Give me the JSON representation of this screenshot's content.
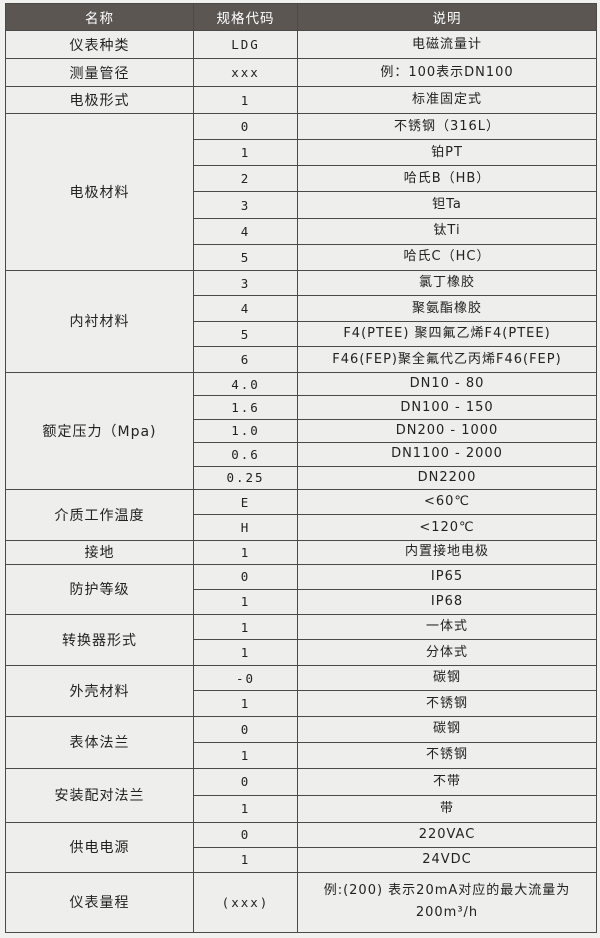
{
  "header": {
    "name": "名称",
    "code": "规格代码",
    "desc": "说明"
  },
  "groups": [
    {
      "name": "仪表种类",
      "rows": [
        {
          "code": "LDG",
          "desc": "电磁流量计"
        }
      ]
    },
    {
      "name": "测量管径",
      "rows": [
        {
          "code": "xxx",
          "desc": "例：100表示DN100"
        }
      ]
    },
    {
      "name": "电极形式",
      "rows": [
        {
          "code": "1",
          "desc": "标准固定式"
        }
      ]
    },
    {
      "name": "电极材料",
      "rows": [
        {
          "code": "0",
          "desc": "不锈钢（316L）"
        },
        {
          "code": "1",
          "desc": "铂PT"
        },
        {
          "code": "2",
          "desc": "哈氏B（HB）"
        },
        {
          "code": "3",
          "desc": "钽Ta"
        },
        {
          "code": "4",
          "desc": "钛Ti"
        },
        {
          "code": "5",
          "desc": "哈氏C（HC）"
        }
      ]
    },
    {
      "name": "内衬材料",
      "rows": [
        {
          "code": "3",
          "desc": "氯丁橡胶"
        },
        {
          "code": "4",
          "desc": "聚氨酯橡胶"
        },
        {
          "code": "5",
          "desc": "F4(PTEE) 聚四氟乙烯F4(PTEE)"
        },
        {
          "code": "6",
          "desc": "F46(FEP)聚全氟代乙丙烯F46(FEP)"
        }
      ]
    },
    {
      "name": "额定压力（Mpa)",
      "rows": [
        {
          "code": "4.0",
          "desc": "DN10 - 80"
        },
        {
          "code": "1.6",
          "desc": "DN100 - 150"
        },
        {
          "code": "1.0",
          "desc": "DN200 - 1000"
        },
        {
          "code": "0.6",
          "desc": "DN1100 - 2000"
        },
        {
          "code": "0.25",
          "desc": "DN2200"
        }
      ]
    },
    {
      "name": "介质工作温度",
      "rows": [
        {
          "code": "E",
          "desc": "<60℃"
        },
        {
          "code": "H",
          "desc": "<120℃"
        }
      ]
    },
    {
      "name": "接地",
      "rows": [
        {
          "code": "1",
          "desc": "内置接地电极"
        }
      ]
    },
    {
      "name": "防护等级",
      "rows": [
        {
          "code": "0",
          "desc": "IP65"
        },
        {
          "code": "1",
          "desc": "IP68"
        }
      ]
    },
    {
      "name": "转换器形式",
      "rows": [
        {
          "code": "1",
          "desc": "一体式"
        },
        {
          "code": "1",
          "desc": "分体式"
        }
      ]
    },
    {
      "name": "外壳材料",
      "rows": [
        {
          "code": "-0",
          "desc": "碳钢"
        },
        {
          "code": "1",
          "desc": "不锈钢"
        }
      ]
    },
    {
      "name": "表体法兰",
      "rows": [
        {
          "code": "0",
          "desc": "碳钢"
        },
        {
          "code": "1",
          "desc": "不锈钢"
        }
      ]
    },
    {
      "name": "安装配对法兰",
      "rows": [
        {
          "code": "0",
          "desc": "不带"
        },
        {
          "code": "1",
          "desc": "带"
        }
      ]
    },
    {
      "name": "供电电源",
      "rows": [
        {
          "code": "0",
          "desc": "220VAC"
        },
        {
          "code": "1",
          "desc": "24VDC"
        }
      ]
    },
    {
      "name": "仪表量程",
      "rows": [
        {
          "code": "(xxx)",
          "desc": "例:(200) 表示20mA对应的最大流量为200m³/h"
        }
      ]
    }
  ]
}
